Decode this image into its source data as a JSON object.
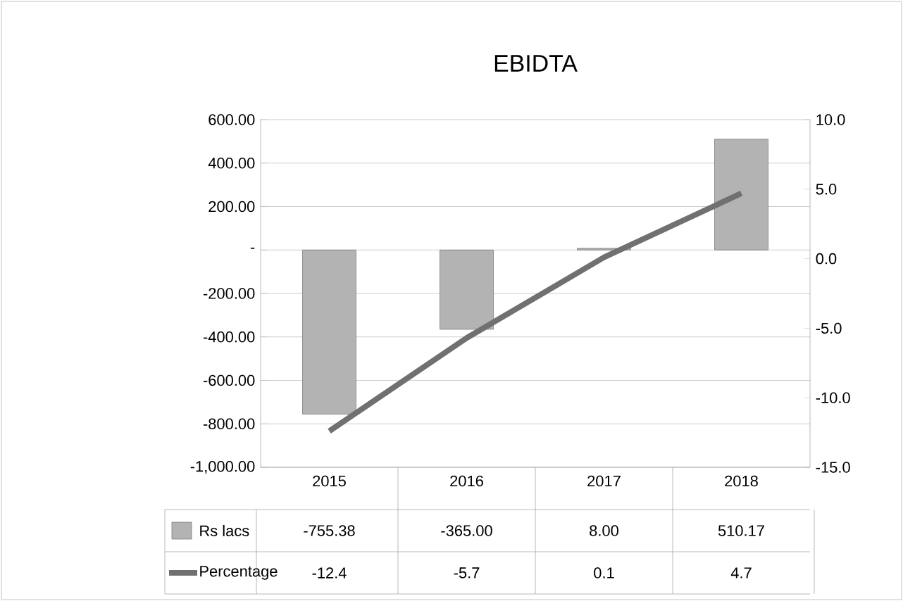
{
  "chart_data": {
    "type": "bar",
    "title": "EBIDTA",
    "categories": [
      "2015",
      "2016",
      "2017",
      "2018"
    ],
    "series": [
      {
        "name": "Rs lacs",
        "color": "#b3b3b3",
        "values": [
          -755.38,
          -365.0,
          8.0,
          510.17
        ],
        "value_labels": [
          "-755.38",
          "-365.00",
          "8.00",
          "510.17"
        ]
      },
      {
        "name": "Percentage",
        "type": "line",
        "axis": "y2",
        "color": "#707070",
        "values": [
          -12.4,
          -5.7,
          0.1,
          4.7
        ],
        "value_labels": [
          "-12.4",
          "-5.7",
          "0.1",
          "4.7"
        ],
        "line_style": "solid",
        "marker": "none"
      }
    ],
    "ylim": [
      -1000,
      600
    ],
    "yticks": [
      {
        "value": -1000,
        "label": "-1,000.00"
      },
      {
        "value": -800,
        "label": "-800.00"
      },
      {
        "value": -600,
        "label": "-600.00"
      },
      {
        "value": -400,
        "label": "-400.00"
      },
      {
        "value": -200,
        "label": "-200.00"
      },
      {
        "value": 0,
        "label": "-"
      },
      {
        "value": 200,
        "label": "200.00"
      },
      {
        "value": 400,
        "label": "400.00"
      },
      {
        "value": 600,
        "label": "600.00"
      }
    ],
    "y2lim": [
      -15,
      10
    ],
    "y2ticks": [
      {
        "value": -15,
        "label": "-15.0"
      },
      {
        "value": -10,
        "label": "-10.0"
      },
      {
        "value": -5,
        "label": "-5.0"
      },
      {
        "value": 0,
        "label": "0.0"
      },
      {
        "value": 5,
        "label": "5.0"
      },
      {
        "value": 10,
        "label": "10.0"
      }
    ],
    "grid": "y",
    "legend": "bottom"
  }
}
